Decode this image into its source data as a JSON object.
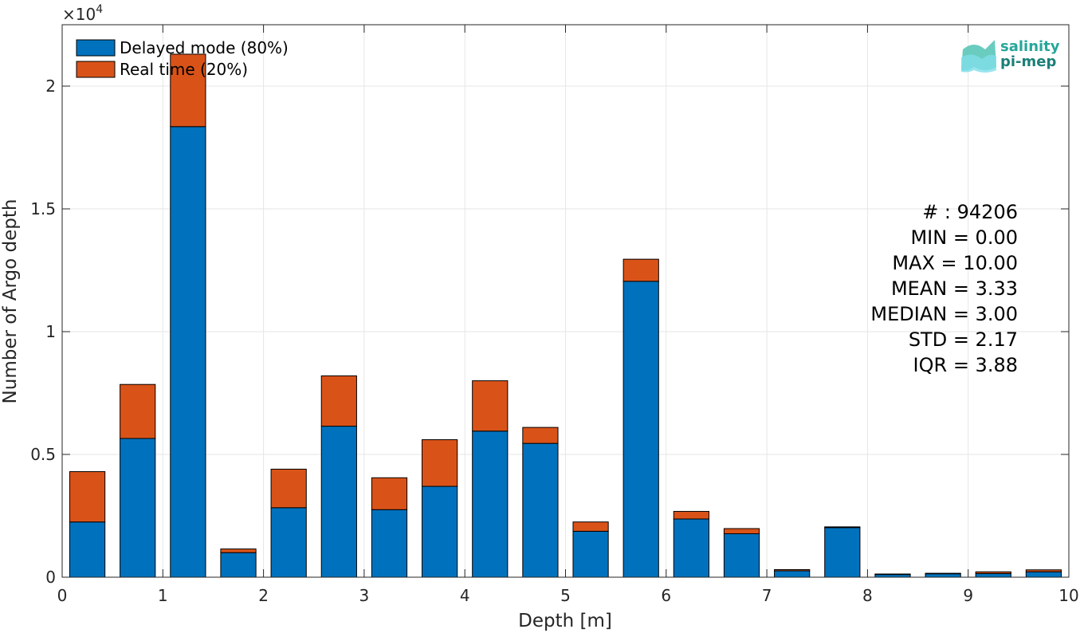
{
  "chart_data": {
    "type": "bar",
    "stacked": true,
    "xlabel": "Depth [m]",
    "ylabel": "Number of Argo depth",
    "y_exponent_label": "×10",
    "y_exponent_power": "4",
    "xlim": [
      0,
      10
    ],
    "ylim": [
      0,
      22500
    ],
    "xticks": [
      0,
      1,
      2,
      3,
      4,
      5,
      6,
      7,
      8,
      9,
      10
    ],
    "xtick_labels": [
      "0",
      "1",
      "2",
      "3",
      "4",
      "5",
      "6",
      "7",
      "8",
      "9",
      "10"
    ],
    "yticks": [
      0,
      5000,
      10000,
      15000,
      20000
    ],
    "ytick_labels": [
      "0",
      "0.5",
      "1",
      "1.5",
      "2"
    ],
    "grid": true,
    "legend_position": "top-left",
    "bin_width": 0.5,
    "bar_width_fraction": 0.7,
    "x": [
      0.25,
      0.75,
      1.25,
      1.75,
      2.25,
      2.75,
      3.25,
      3.75,
      4.25,
      4.75,
      5.25,
      5.75,
      6.25,
      6.75,
      7.25,
      7.75,
      8.25,
      8.75,
      9.25,
      9.75
    ],
    "series": [
      {
        "name": "Delayed mode (80%)",
        "color": "#0072BD",
        "values": [
          2250,
          5650,
          18350,
          1000,
          2830,
          6150,
          2750,
          3700,
          5950,
          5450,
          1870,
          12050,
          2370,
          1770,
          260,
          2020,
          110,
          140,
          150,
          220
        ]
      },
      {
        "name": "Real time (20%)",
        "color": "#D95319",
        "values": [
          2050,
          2200,
          2950,
          150,
          1570,
          2050,
          1300,
          1900,
          2050,
          650,
          380,
          900,
          310,
          210,
          50,
          30,
          20,
          20,
          70,
          80
        ]
      }
    ],
    "stats_lines": [
      "# : 94206",
      "MIN = 0.00",
      "MAX =  10.00",
      "MEAN = 3.33",
      "MEDIAN = 3.00",
      "STD = 2.17",
      "IQR = 3.88"
    ]
  },
  "logo": {
    "line1": "salinity",
    "line2": "pi-mep",
    "color": "#26a69a",
    "color_dark": "#1b7f78"
  }
}
